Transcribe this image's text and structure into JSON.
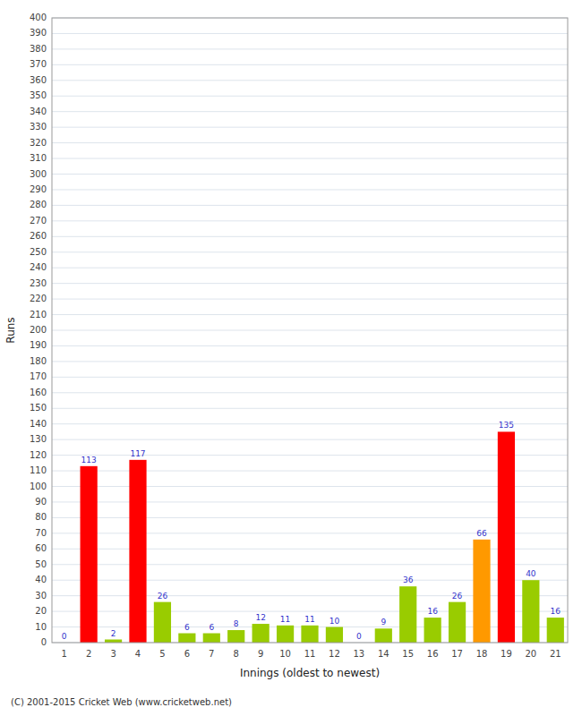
{
  "chart_data": {
    "type": "bar",
    "xlabel": "Innings (oldest to newest)",
    "ylabel": "Runs",
    "categories": [
      1,
      2,
      3,
      4,
      5,
      6,
      7,
      8,
      9,
      10,
      11,
      12,
      13,
      14,
      15,
      16,
      17,
      18,
      19,
      20,
      21
    ],
    "values": [
      0,
      113,
      2,
      117,
      26,
      6,
      6,
      8,
      12,
      11,
      11,
      10,
      0,
      9,
      36,
      16,
      26,
      66,
      135,
      40,
      16
    ],
    "colors": [
      "#99cc00",
      "#ff0000",
      "#99cc00",
      "#ff0000",
      "#99cc00",
      "#99cc00",
      "#99cc00",
      "#99cc00",
      "#99cc00",
      "#99cc00",
      "#99cc00",
      "#99cc00",
      "#99cc00",
      "#99cc00",
      "#99cc00",
      "#99cc00",
      "#99cc00",
      "#ff9900",
      "#ff0000",
      "#99cc00",
      "#99cc00"
    ],
    "ylim": [
      0,
      400
    ],
    "yticks": [
      0,
      10,
      20,
      30,
      40,
      50,
      60,
      70,
      80,
      90,
      100,
      110,
      120,
      130,
      140,
      150,
      160,
      170,
      180,
      190,
      200,
      210,
      220,
      230,
      240,
      250,
      260,
      270,
      280,
      290,
      300,
      310,
      320,
      330,
      340,
      350,
      360,
      370,
      380,
      390,
      400
    ],
    "grid": true,
    "data_labels": true,
    "annotations": [
      "(C) 2001-2015 Cricket Web (www.cricketweb.net)"
    ]
  }
}
